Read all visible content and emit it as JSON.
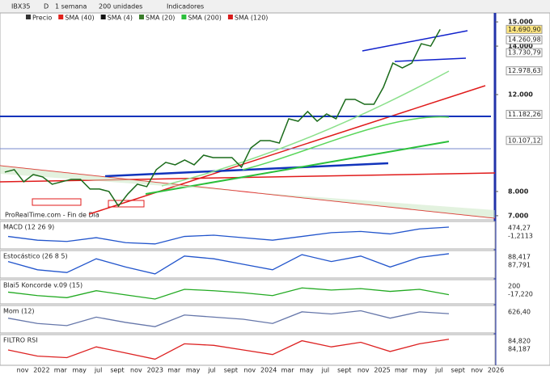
{
  "toolbar": {
    "symbol": "IBX35",
    "d": "D",
    "period": "1 semana",
    "units": "200 unidades",
    "indicators": "Indicadores"
  },
  "legend": [
    "Precio",
    "SMA (40)",
    "SMA (4)",
    "SMA (20)",
    "SMA (200)",
    "SMA (120)"
  ],
  "legend_colors": [
    "#333333",
    "#e0201b",
    "#111111",
    "#3a7d2b",
    "#2bbf3b",
    "#d81b1b"
  ],
  "watermark": "ProRealTime.com - Fin de Día",
  "price": {
    "values": [
      8800,
      8900,
      8400,
      8700,
      8600,
      8300,
      8400,
      8500,
      8500,
      8100,
      8100,
      8000,
      7400,
      7900,
      8300,
      8200,
      8900,
      9200,
      9100,
      9300,
      9100,
      9500,
      9400,
      9400,
      9400,
      9000,
      9800,
      10100,
      10100,
      10000,
      11000,
      10900,
      11300,
      10900,
      11200,
      11000,
      11800,
      11800,
      11600,
      11600,
      12300,
      13300,
      13100,
      13300,
      14100,
      14000,
      14690.9
    ],
    "ylim": [
      6830,
      15370
    ],
    "yticks": [
      {
        "value": 15000,
        "label": "15.000"
      },
      {
        "value": 14000,
        "label": "14.000"
      },
      {
        "value": 12000,
        "label": "12.000"
      },
      {
        "value": 8000,
        "label": "8.000"
      },
      {
        "value": 7000,
        "label": "7.000"
      }
    ],
    "levels": [
      {
        "value": 14690.9,
        "label": "14.690,90",
        "color": "#ffe680"
      },
      {
        "value": 14260.98,
        "label": "14.260,98",
        "color": "#ffffff"
      },
      {
        "value": 13730.79,
        "label": "13.730,79",
        "color": "#ffffff"
      },
      {
        "value": 12978.63,
        "label": "12.978,63",
        "color": "#ffffff"
      },
      {
        "value": 11182.26,
        "label": "11.182,26",
        "color": "#ffffff"
      },
      {
        "value": 10107.12,
        "label": "10.107,12",
        "color": "#ffffff"
      }
    ]
  },
  "xaxis": [
    "nov",
    "2022",
    "mar",
    "may",
    "jul",
    "sept",
    "nov",
    "2023",
    "mar",
    "may",
    "jul",
    "sept",
    "nov",
    "2024",
    "mar",
    "may",
    "jul",
    "sept",
    "nov",
    "2025",
    "mar",
    "may",
    "jul",
    "sept",
    "nov",
    "2026"
  ],
  "panels": [
    {
      "label": "MACD (12 26 9)",
      "color": "#2255cc",
      "values": [
        100,
        -50,
        -100,
        50,
        -150,
        -200,
        100,
        150,
        50,
        -50,
        100,
        250,
        300,
        200,
        400,
        474.27
      ],
      "ylim": [
        -400,
        700
      ],
      "labels": [
        "474,27",
        "-1,2113"
      ]
    },
    {
      "label": "Estocástico (26 8 5)",
      "color": "#2255cc",
      "values": [
        60,
        30,
        20,
        70,
        40,
        15,
        80,
        70,
        50,
        30,
        85,
        60,
        80,
        40,
        75,
        88.417
      ],
      "ylim": [
        0,
        100
      ],
      "labels": [
        "88,417",
        "87,791"
      ]
    },
    {
      "label": "Blai5 Koncorde v.09 (15)",
      "color": "#22aa22",
      "values": [
        20,
        -30,
        -60,
        40,
        -20,
        -80,
        60,
        40,
        10,
        -30,
        80,
        50,
        70,
        30,
        60,
        -17.22
      ],
      "ylim": [
        -150,
        200
      ],
      "labels": [
        "200",
        "-17,220"
      ]
    },
    {
      "label": "Mom (12)",
      "color": "#6677aa",
      "values": [
        200,
        -300,
        -500,
        300,
        -200,
        -600,
        500,
        300,
        100,
        -300,
        800,
        600,
        900,
        200,
        800,
        626.4
      ],
      "ylim": [
        -1200,
        1400
      ],
      "labels": [
        "626,40"
      ]
    },
    {
      "label": "FILTRO RSI",
      "color": "#dd2222",
      "values": [
        50,
        30,
        25,
        60,
        40,
        20,
        70,
        65,
        50,
        35,
        80,
        60,
        75,
        45,
        70,
        84.82
      ],
      "ylim": [
        0,
        100
      ],
      "labels": [
        "84,820",
        "84,187"
      ]
    }
  ]
}
